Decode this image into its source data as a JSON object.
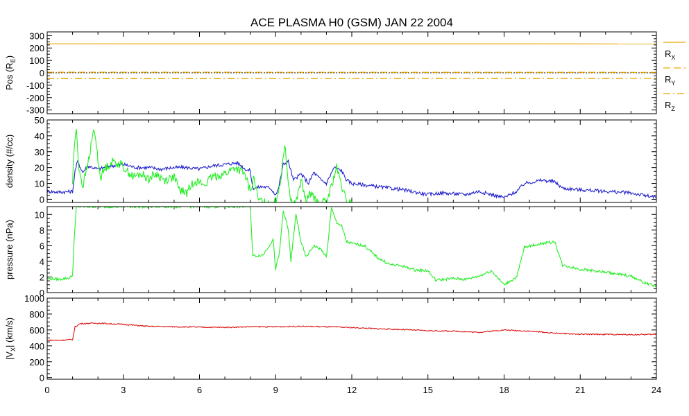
{
  "chart_data": {
    "title": "ACE PLASMA H0 (GSM)   JAN 22 2004",
    "x_ticks": [
      "0",
      "3",
      "6",
      "9",
      "12",
      "15",
      "18",
      "21",
      "24"
    ],
    "xlim": [
      0,
      24
    ],
    "colors": {
      "axis": "#000000",
      "pos": "#e8a800",
      "density_p": "#2222cc",
      "green": "#22ee22",
      "red": "#dd1111"
    },
    "panels": [
      {
        "type": "line",
        "ylabel": "Pos (R",
        "ylabel_sub": "E",
        "ylabel_end": ")",
        "ylim": [
          -330,
          330
        ],
        "y_ticks": [
          -300,
          -200,
          -100,
          0,
          100,
          200,
          300
        ],
        "zero_line": true,
        "series": [
          {
            "label_main": "R",
            "label_sub": "X",
            "dash": "solid",
            "points": [
              [
                0,
                234
              ],
              [
                24,
                233
              ]
            ]
          },
          {
            "label_main": "R",
            "label_sub": "Y",
            "dash": "dash",
            "points": [
              [
                0,
                5
              ],
              [
                24,
                4
              ]
            ]
          },
          {
            "label_main": "R",
            "label_sub": "Z",
            "dash": "dashdot",
            "points": [
              [
                0,
                -47
              ],
              [
                24,
                -46
              ]
            ]
          }
        ]
      },
      {
        "type": "line",
        "ylabel": "density (#/cc)",
        "ylim": [
          -2,
          50
        ],
        "y_ticks": [
          0,
          10,
          20,
          30,
          40,
          50
        ],
        "series": [
          {
            "color_key": "density_p",
            "points": [
              [
                0,
                5
              ],
              [
                0.5,
                4.5
              ],
              [
                1,
                5
              ],
              [
                1.1,
                18
              ],
              [
                1.2,
                24
              ],
              [
                1.4,
                17
              ],
              [
                1.6,
                21
              ],
              [
                2,
                19
              ],
              [
                2.5,
                21
              ],
              [
                3,
                22
              ],
              [
                3.5,
                20
              ],
              [
                4,
                20
              ],
              [
                4.5,
                19
              ],
              [
                5,
                20
              ],
              [
                5.5,
                20
              ],
              [
                6,
                19
              ],
              [
                6.5,
                21
              ],
              [
                7,
                22
              ],
              [
                7.5,
                23
              ],
              [
                7.8,
                19
              ],
              [
                8.0,
                18
              ],
              [
                8.1,
                7
              ],
              [
                8.5,
                8
              ],
              [
                8.8,
                7
              ],
              [
                9.0,
                3
              ],
              [
                9.1,
                6
              ],
              [
                9.3,
                22
              ],
              [
                9.5,
                24
              ],
              [
                9.7,
                12
              ],
              [
                10,
                16
              ],
              [
                10.3,
                10
              ],
              [
                10.5,
                17
              ],
              [
                10.8,
                12
              ],
              [
                11,
                10
              ],
              [
                11.3,
                20
              ],
              [
                11.6,
                18
              ],
              [
                11.8,
                12
              ],
              [
                12,
                10
              ],
              [
                13,
                8
              ],
              [
                14,
                6
              ],
              [
                15,
                3
              ],
              [
                15.5,
                4
              ],
              [
                16.5,
                3
              ],
              [
                17,
                5
              ],
              [
                17.5,
                3
              ],
              [
                18,
                1
              ],
              [
                18.5,
                5
              ],
              [
                18.8,
                10
              ],
              [
                19.5,
                12
              ],
              [
                20,
                11
              ],
              [
                20.3,
                7
              ],
              [
                21,
                6
              ],
              [
                22,
                5
              ],
              [
                23,
                4
              ],
              [
                24,
                1
              ]
            ]
          },
          {
            "color_key": "green",
            "points": [
              [
                1.0,
                10
              ],
              [
                1.05,
                30
              ],
              [
                1.15,
                44
              ],
              [
                1.25,
                20
              ],
              [
                1.4,
                8
              ],
              [
                1.6,
                22
              ],
              [
                1.85,
                45
              ],
              [
                2,
                25
              ],
              [
                2.1,
                14
              ],
              [
                2.3,
                20
              ],
              [
                2.6,
                24
              ],
              [
                2.9,
                22
              ],
              [
                3.2,
                17
              ],
              [
                3.4,
                14
              ],
              [
                3.7,
                16
              ],
              [
                4,
                13
              ],
              [
                4.3,
                16
              ],
              [
                4.6,
                12
              ],
              [
                5,
                14
              ],
              [
                5.2,
                6
              ],
              [
                5.5,
                4
              ],
              [
                5.8,
                12
              ],
              [
                6.2,
                9
              ],
              [
                6.5,
                14
              ],
              [
                7,
                16
              ],
              [
                7.4,
                20
              ],
              [
                7.6,
                18
              ],
              [
                7.8,
                15
              ],
              [
                8.0,
                5
              ],
              [
                8.15,
                14
              ],
              [
                8.3,
                0
              ],
              [
                8.5,
                -2
              ],
              [
                8.8,
                -2
              ],
              [
                9.0,
                -2
              ],
              [
                9.2,
                12
              ],
              [
                9.35,
                35
              ],
              [
                9.45,
                20
              ],
              [
                9.6,
                -2
              ],
              [
                9.8,
                -2
              ],
              [
                10,
                12
              ],
              [
                10.2,
                -2
              ],
              [
                10.4,
                5
              ],
              [
                10.6,
                -2
              ],
              [
                11,
                -2
              ],
              [
                11.2,
                8
              ],
              [
                11.4,
                20
              ],
              [
                11.6,
                8
              ],
              [
                11.8,
                -2
              ],
              [
                12,
                -2
              ]
            ]
          }
        ]
      },
      {
        "type": "line",
        "ylabel": "pressure (nPa)",
        "ylim": [
          0,
          11
        ],
        "y_ticks": [
          0,
          2,
          4,
          6,
          8,
          10
        ],
        "series": [
          {
            "color_key": "green",
            "points": [
              [
                0,
                1.8
              ],
              [
                0.5,
                1.7
              ],
              [
                0.9,
                1.9
              ],
              [
                1.0,
                2.2
              ],
              [
                1.05,
                6
              ],
              [
                1.15,
                11
              ],
              [
                8.0,
                11
              ],
              [
                8.1,
                4.7
              ],
              [
                8.5,
                4.8
              ],
              [
                8.9,
                6.8
              ],
              [
                9.0,
                3.0
              ],
              [
                9.15,
                5
              ],
              [
                9.3,
                10.5
              ],
              [
                9.5,
                8
              ],
              [
                9.6,
                4
              ],
              [
                9.8,
                10
              ],
              [
                10,
                6.5
              ],
              [
                10.2,
                4.5
              ],
              [
                10.5,
                6
              ],
              [
                10.8,
                5.5
              ],
              [
                11.0,
                4.5
              ],
              [
                11.2,
                10.8
              ],
              [
                11.4,
                9
              ],
              [
                11.6,
                8.5
              ],
              [
                11.8,
                6.5
              ],
              [
                12,
                6.3
              ],
              [
                12.5,
                6
              ],
              [
                13,
                4.5
              ],
              [
                13.5,
                3.6
              ],
              [
                14,
                3.4
              ],
              [
                14.5,
                2.9
              ],
              [
                15,
                2.8
              ],
              [
                15.3,
                1.6
              ],
              [
                16,
                1.8
              ],
              [
                16.5,
                1.7
              ],
              [
                17,
                2.1
              ],
              [
                17.5,
                2.8
              ],
              [
                18,
                1.0
              ],
              [
                18.5,
                2
              ],
              [
                18.8,
                5.8
              ],
              [
                19.5,
                6.3
              ],
              [
                20,
                6.5
              ],
              [
                20.3,
                3.5
              ],
              [
                21,
                3.0
              ],
              [
                22,
                2.6
              ],
              [
                23,
                2.1
              ],
              [
                23.5,
                1.3
              ],
              [
                24,
                0.8
              ]
            ]
          }
        ]
      },
      {
        "type": "line",
        "ylabel": "|V",
        "ylabel_sub": "X",
        "ylabel_end": "| (km/s)",
        "ylim": [
          -20,
          1000
        ],
        "y_ticks": [
          0,
          200,
          400,
          600,
          800,
          1000
        ],
        "series": [
          {
            "color_key": "red",
            "points": [
              [
                0,
                470
              ],
              [
                0.5,
                470
              ],
              [
                1.0,
                480
              ],
              [
                1.1,
                640
              ],
              [
                1.3,
                680
              ],
              [
                2,
                685
              ],
              [
                3,
                670
              ],
              [
                4,
                645
              ],
              [
                5,
                640
              ],
              [
                6,
                635
              ],
              [
                7,
                632
              ],
              [
                8,
                640
              ],
              [
                9,
                640
              ],
              [
                10,
                645
              ],
              [
                11,
                640
              ],
              [
                12,
                630
              ],
              [
                13,
                615
              ],
              [
                14,
                605
              ],
              [
                15,
                590
              ],
              [
                16,
                585
              ],
              [
                17,
                570
              ],
              [
                18,
                600
              ],
              [
                19,
                585
              ],
              [
                20,
                560
              ],
              [
                21,
                545
              ],
              [
                22,
                545
              ],
              [
                23,
                540
              ],
              [
                24,
                545
              ]
            ]
          }
        ]
      }
    ]
  }
}
